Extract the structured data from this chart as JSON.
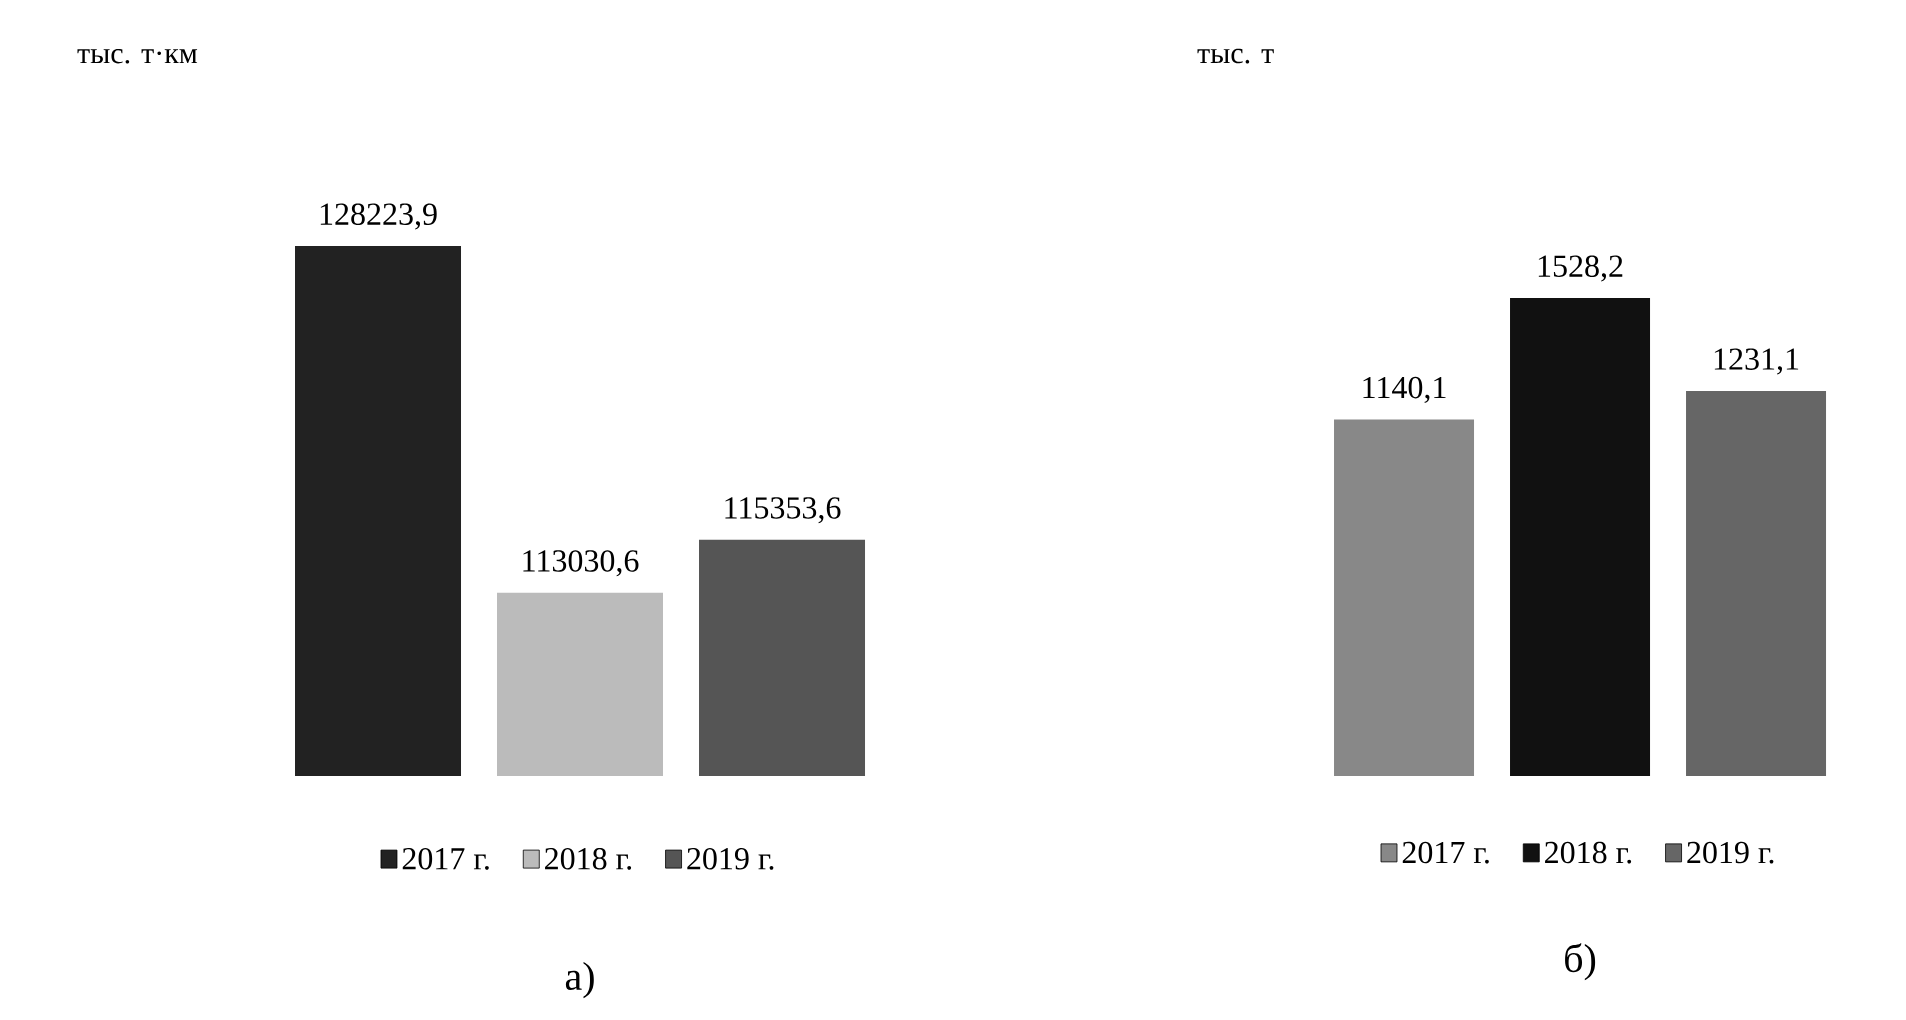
{
  "chart_data": [
    {
      "type": "bar",
      "title": "а)",
      "ylabel": "тыс. т·км",
      "categories": [
        null
      ],
      "ylim": [
        105000,
        128223.9
      ],
      "legend": "bottom",
      "series": [
        {
          "name": "2017 г.",
          "color": "#222222",
          "values": [
            128223.9
          ],
          "value_labels": [
            "128223,9"
          ]
        },
        {
          "name": "2018 г.",
          "color": "#bbbbbb",
          "values": [
            113030.6
          ],
          "value_labels": [
            "113030,6"
          ]
        },
        {
          "name": "2019 г.",
          "color": "#555555",
          "values": [
            115353.6
          ],
          "value_labels": [
            "115353,6"
          ]
        }
      ]
    },
    {
      "type": "bar",
      "title": "б)",
      "ylabel": "тыс. т",
      "categories": [
        null
      ],
      "ylim": [
        0,
        1528.2
      ],
      "legend": "bottom",
      "series": [
        {
          "name": "2017 г.",
          "color": "#888888",
          "values": [
            1140.1
          ],
          "value_labels": [
            "1140,1"
          ]
        },
        {
          "name": "2018 г.",
          "color": "#111111",
          "values": [
            1528.2
          ],
          "value_labels": [
            "1528,2"
          ]
        },
        {
          "name": "2019 г.",
          "color": "#666666",
          "values": [
            1231.1
          ],
          "value_labels": [
            "1231,1"
          ]
        }
      ]
    }
  ]
}
